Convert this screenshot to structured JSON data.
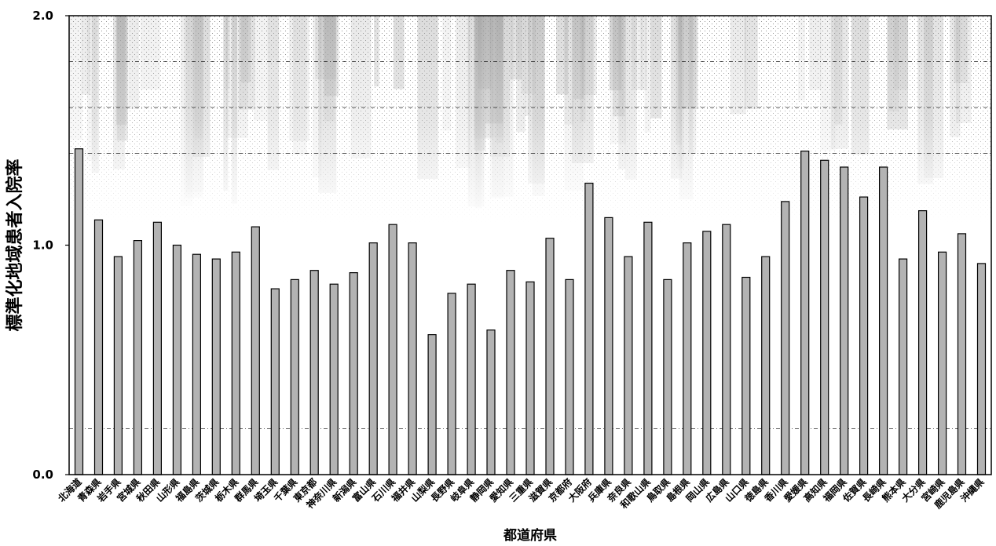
{
  "chart_data": {
    "type": "bar",
    "xlabel": "都道府県",
    "ylabel": "標準化地域患者入院率",
    "ylim": [
      0.0,
      2.0
    ],
    "yticks": [
      "0.0",
      "1.0",
      "2.0"
    ],
    "grid": true,
    "categories": [
      "北海道",
      "青森県",
      "岩手県",
      "宮城県",
      "秋田県",
      "山形県",
      "福島県",
      "茨城県",
      "栃木県",
      "群馬県",
      "埼玉県",
      "千葉県",
      "東京都",
      "神奈川県",
      "新潟県",
      "富山県",
      "石川県",
      "福井県",
      "山梨県",
      "長野県",
      "岐阜県",
      "静岡県",
      "愛知県",
      "三重県",
      "滋賀県",
      "京都府",
      "大阪府",
      "兵庫県",
      "奈良県",
      "和歌山県",
      "鳥取県",
      "島根県",
      "岡山県",
      "広島県",
      "山口県",
      "徳島県",
      "香川県",
      "愛媛県",
      "高知県",
      "福岡県",
      "佐賀県",
      "長崎県",
      "熊本県",
      "大分県",
      "宮崎県",
      "鹿児島県",
      "沖縄県"
    ],
    "values": [
      1.42,
      1.11,
      0.95,
      1.02,
      1.1,
      1.0,
      0.96,
      0.94,
      0.97,
      1.08,
      0.81,
      0.85,
      0.89,
      0.83,
      0.88,
      1.01,
      1.09,
      1.01,
      0.61,
      0.79,
      0.83,
      0.63,
      0.89,
      0.84,
      1.03,
      0.85,
      1.27,
      1.12,
      0.95,
      1.1,
      0.85,
      1.01,
      1.06,
      1.09,
      0.86,
      0.95,
      1.19,
      1.41,
      1.37,
      1.34,
      1.21,
      1.34,
      0.94,
      1.15,
      0.97,
      1.05,
      0.92
    ],
    "colors": {
      "bar_fill": "#b3b3b3",
      "bar_stroke": "#000000",
      "grid": "#000000",
      "noise": "#8c8c8c"
    }
  }
}
